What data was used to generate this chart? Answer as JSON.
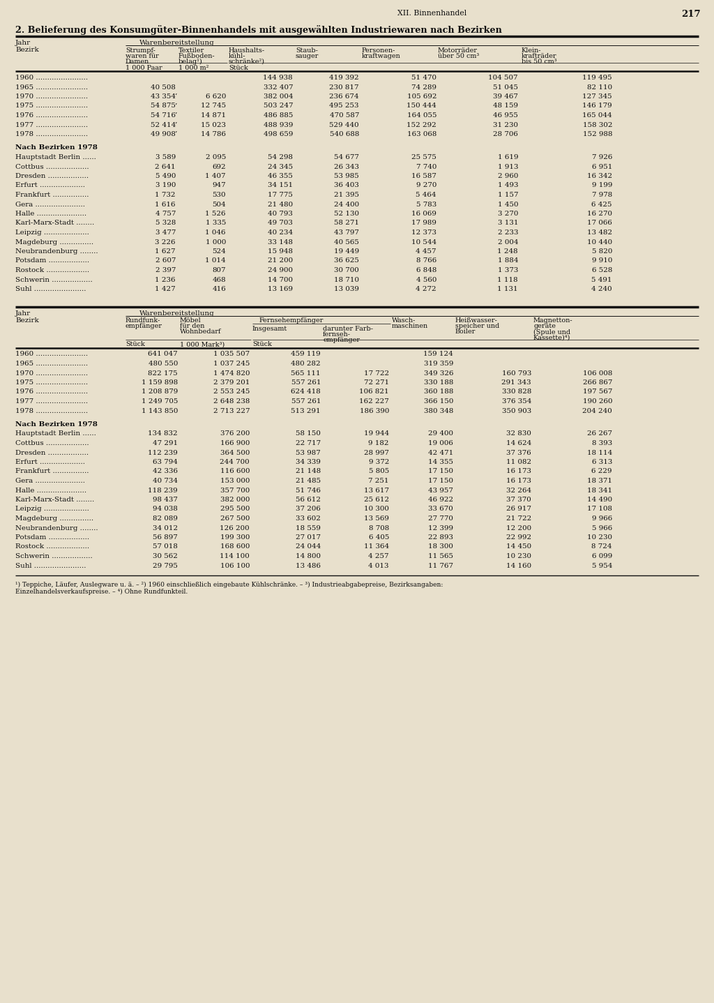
{
  "page_num": "217",
  "chapter": "XII. Binnenhandel",
  "title": "2. Belieferung des Konsumgüter-Binnenhandels mit ausgewählten Industriewaren nach Bezirken",
  "t1_years": [
    [
      "1960",
      "",
      "",
      "144 938",
      "419 392",
      "51 470",
      "104 507",
      "119 495"
    ],
    [
      "1965",
      "40 508",
      "",
      "332 407",
      "230 817",
      "74 289",
      "51 045",
      "82 110"
    ],
    [
      "1970",
      "43 354",
      "6 620",
      "382 004",
      "236 674",
      "105 692",
      "39 467",
      "127 345"
    ],
    [
      "1975",
      "54 875",
      "12 745",
      "503 247",
      "495 253",
      "150 444",
      "48 159",
      "146 179"
    ],
    [
      "1976",
      "54 716",
      "14 871",
      "486 885",
      "470 587",
      "164 055",
      "46 955",
      "165 044"
    ],
    [
      "1977",
      "52 414",
      "15 023",
      "488 939",
      "529 440",
      "152 292",
      "31 230",
      "158 302"
    ],
    [
      "1978",
      "49 908",
      "14 786",
      "498 659",
      "540 688",
      "163 068",
      "28 706",
      "152 988"
    ]
  ],
  "t1_bezirke": [
    [
      "Hauptstadt Berlin ......",
      "3 589",
      "2 095",
      "54 298",
      "54 677",
      "25 575",
      "1 619",
      "7 926"
    ],
    [
      "Cottbus ...................",
      "2 641",
      "692",
      "24 345",
      "26 343",
      "7 740",
      "1 913",
      "6 951"
    ],
    [
      "Dresden ..................",
      "5 490",
      "1 407",
      "46 355",
      "53 985",
      "16 587",
      "2 960",
      "16 342"
    ],
    [
      "Erfurt ....................",
      "3 190",
      "947",
      "34 151",
      "36 403",
      "9 270",
      "1 493",
      "9 199"
    ],
    [
      "Frankfurt ................",
      "1 732",
      "530",
      "17 775",
      "21 395",
      "5 464",
      "1 157",
      "7 978"
    ],
    [
      "Gera ......................",
      "1 616",
      "504",
      "21 480",
      "24 400",
      "5 783",
      "1 450",
      "6 425"
    ],
    [
      "Halle ......................",
      "4 757",
      "1 526",
      "40 793",
      "52 130",
      "16 069",
      "3 270",
      "16 270"
    ],
    [
      "Karl-Marx-Stadt ........",
      "5 328",
      "1 335",
      "49 703",
      "58 271",
      "17 989",
      "3 131",
      "17 066"
    ],
    [
      "Leipzig ....................",
      "3 477",
      "1 046",
      "40 234",
      "43 797",
      "12 373",
      "2 233",
      "13 482"
    ],
    [
      "Magdeburg ...............",
      "3 226",
      "1 000",
      "33 148",
      "40 565",
      "10 544",
      "2 004",
      "10 440"
    ],
    [
      "Neubrandenburg ........",
      "1 627",
      "524",
      "15 948",
      "19 449",
      "4 457",
      "1 248",
      "5 820"
    ],
    [
      "Potsdam ..................",
      "2 607",
      "1 014",
      "21 200",
      "36 625",
      "8 766",
      "1 884",
      "9 910"
    ],
    [
      "Rostock ...................",
      "2 397",
      "807",
      "24 900",
      "30 700",
      "6 848",
      "1 373",
      "6 528"
    ],
    [
      "Schwerin ..................",
      "1 236",
      "468",
      "14 700",
      "18 710",
      "4 560",
      "1 118",
      "5 491"
    ],
    [
      "Suhl .......................",
      "1 427",
      "416",
      "13 169",
      "13 039",
      "4 272",
      "1 131",
      "4 240"
    ]
  ],
  "t2_years": [
    [
      "1960",
      "641 047",
      "1 035 507",
      "459 119",
      "",
      "159 124",
      "",
      ""
    ],
    [
      "1965",
      "480 550",
      "1 037 245",
      "480 282",
      "",
      "319 359",
      "",
      ""
    ],
    [
      "1970",
      "822 175",
      "1 474 820",
      "565 111",
      "17 722",
      "349 326",
      "160 793",
      "106 008"
    ],
    [
      "1975",
      "1 159 898",
      "2 379 201",
      "557 261",
      "72 271",
      "330 188",
      "291 343",
      "266 867"
    ],
    [
      "1976",
      "1 208 879",
      "2 553 245",
      "624 418",
      "106 821",
      "360 188",
      "330 828",
      "197 567"
    ],
    [
      "1977",
      "1 249 705",
      "2 648 238",
      "557 261",
      "162 227",
      "366 150",
      "376 354",
      "190 260"
    ],
    [
      "1978",
      "1 143 850",
      "2 713 227",
      "513 291",
      "186 390",
      "380 348",
      "350 903",
      "204 240"
    ]
  ],
  "t2_bezirke": [
    [
      "Hauptstadt Berlin ......",
      "134 832",
      "376 200",
      "58 150",
      "19 944",
      "29 400",
      "32 830",
      "26 267"
    ],
    [
      "Cottbus ...................",
      "47 291",
      "166 900",
      "22 717",
      "9 182",
      "19 006",
      "14 624",
      "8 393"
    ],
    [
      "Dresden ..................",
      "112 239",
      "364 500",
      "53 987",
      "28 997",
      "42 471",
      "37 376",
      "18 114"
    ],
    [
      "Erfurt ....................",
      "63 794",
      "244 700",
      "34 339",
      "9 372",
      "14 355",
      "11 082",
      "6 313"
    ],
    [
      "Frankfurt ................",
      "42 336",
      "116 600",
      "21 148",
      "5 805",
      "17 150",
      "16 173",
      "6 229"
    ],
    [
      "Gera ......................",
      "40 734",
      "153 000",
      "21 485",
      "7 251",
      "17 150",
      "16 173",
      "18 371"
    ],
    [
      "Halle ......................",
      "118 239",
      "357 700",
      "51 746",
      "13 617",
      "43 957",
      "32 264",
      "18 341"
    ],
    [
      "Karl-Marx-Stadt ........",
      "98 437",
      "382 000",
      "56 612",
      "25 612",
      "46 922",
      "37 370",
      "14 490"
    ],
    [
      "Leipzig ....................",
      "94 038",
      "295 500",
      "37 206",
      "10 300",
      "33 670",
      "26 917",
      "17 108"
    ],
    [
      "Magdeburg ...............",
      "82 089",
      "267 500",
      "33 602",
      "13 569",
      "27 770",
      "21 722",
      "9 966"
    ],
    [
      "Neubrandenburg ........",
      "34 012",
      "126 200",
      "18 559",
      "8 708",
      "12 399",
      "12 200",
      "5 966"
    ],
    [
      "Potsdam ..................",
      "56 897",
      "199 300",
      "27 017",
      "6 405",
      "22 893",
      "22 992",
      "10 230"
    ],
    [
      "Rostock ...................",
      "57 018",
      "168 600",
      "24 044",
      "11 364",
      "18 300",
      "14 450",
      "8 724"
    ],
    [
      "Schwerin ..................",
      "30 562",
      "114 100",
      "14 800",
      "4 257",
      "11 565",
      "10 230",
      "6 099"
    ],
    [
      "Suhl .......................",
      "29 795",
      "106 100",
      "13 486",
      "4 013",
      "11 767",
      "14 160",
      "5 954"
    ]
  ],
  "footnotes": [
    "¹) Teppiche, Läufer, Auslegware u. ä. – ²) 1960 einschließlich eingebaute Kühlschränke. – ³) Industrieabgabepreise, Bezirksangaben:",
    "Einzelhandelsverkaufspreise. – ⁴) Ohne Rundfunkteil."
  ],
  "bg_color": "#e8e0cc",
  "text_color": "#111111"
}
